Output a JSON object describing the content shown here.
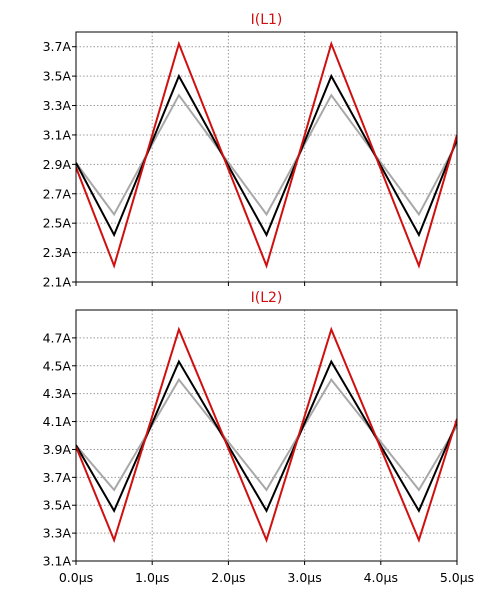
{
  "chart_data": [
    {
      "type": "line",
      "title": "I(L1)",
      "title_color": "#d01010",
      "xlabel": "",
      "ylabel": "",
      "xlim": [
        0,
        5
      ],
      "ylim": [
        2.1,
        3.8
      ],
      "yticks": [
        3.7,
        3.5,
        3.3,
        3.1,
        2.9,
        2.7,
        2.5,
        2.3,
        2.1
      ],
      "ytick_labels": [
        "3.7A",
        "3.5A",
        "3.3A",
        "3.1A",
        "2.9A",
        "2.7A",
        "2.5A",
        "2.3A",
        "2.1A"
      ],
      "xticks": [
        0,
        1,
        2,
        3,
        4,
        5
      ],
      "grid": true,
      "series": [
        {
          "color": "#a8a8a8",
          "x": [
            0,
            0.5,
            1.35,
            2.5,
            3.35,
            4.5,
            5.0
          ],
          "values": [
            2.91,
            2.56,
            3.37,
            2.56,
            3.37,
            2.56,
            3.05
          ]
        },
        {
          "color": "#000000",
          "x": [
            0,
            0.5,
            1.35,
            2.5,
            3.35,
            4.5,
            5.0
          ],
          "values": [
            2.91,
            2.42,
            3.5,
            2.42,
            3.5,
            2.42,
            3.07
          ]
        },
        {
          "color": "#d01010",
          "x": [
            0,
            0.5,
            1.35,
            2.5,
            3.35,
            4.5,
            5.0
          ],
          "values": [
            2.88,
            2.21,
            3.72,
            2.21,
            3.72,
            2.21,
            3.1
          ]
        }
      ]
    },
    {
      "type": "line",
      "title": "I(L2)",
      "title_color": "#d01010",
      "xlabel": "",
      "ylabel": "",
      "xlim": [
        0,
        5
      ],
      "ylim": [
        3.1,
        4.9
      ],
      "yticks": [
        4.7,
        4.5,
        4.3,
        4.1,
        3.9,
        3.7,
        3.5,
        3.3,
        3.1
      ],
      "ytick_labels": [
        "4.7A",
        "4.5A",
        "4.3A",
        "4.1A",
        "3.9A",
        "3.7A",
        "3.5A",
        "3.3A",
        "3.1A"
      ],
      "xticks": [
        0,
        1,
        2,
        3,
        4,
        5
      ],
      "xtick_labels": [
        "0.0µs",
        "1.0µs",
        "2.0µs",
        "3.0µs",
        "4.0µs",
        "5.0µs"
      ],
      "grid": true,
      "series": [
        {
          "color": "#a8a8a8",
          "x": [
            0,
            0.5,
            1.35,
            2.5,
            3.35,
            4.5,
            5.0
          ],
          "values": [
            3.93,
            3.61,
            4.4,
            3.61,
            4.4,
            3.61,
            4.07
          ]
        },
        {
          "color": "#000000",
          "x": [
            0,
            0.5,
            1.35,
            2.5,
            3.35,
            4.5,
            5.0
          ],
          "values": [
            3.93,
            3.46,
            4.53,
            3.46,
            4.53,
            3.46,
            4.1
          ]
        },
        {
          "color": "#d01010",
          "x": [
            0,
            0.5,
            1.35,
            2.5,
            3.35,
            4.5,
            5.0
          ],
          "values": [
            3.92,
            3.25,
            4.76,
            3.25,
            4.76,
            3.25,
            4.12
          ]
        }
      ]
    }
  ]
}
